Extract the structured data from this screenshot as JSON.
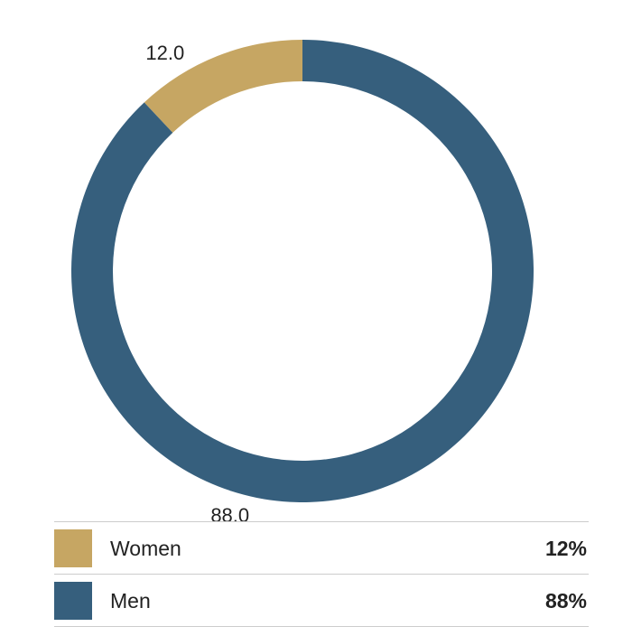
{
  "chart_data": {
    "type": "pie",
    "variant": "donut",
    "categories": [
      "Women",
      "Men"
    ],
    "values": [
      12.0,
      88.0
    ],
    "data_labels": [
      "12.0",
      "88.0"
    ],
    "colors": [
      "#c6a663",
      "#365f7d"
    ],
    "legend_placement": "bottom",
    "start_angle_deg": 0,
    "direction": "counterclockwise-for-first-slice"
  },
  "legend": {
    "items": [
      {
        "label": "Women",
        "value": "12%",
        "color": "#c6a663"
      },
      {
        "label": "Men",
        "value": "88%",
        "color": "#365f7d"
      }
    ]
  }
}
